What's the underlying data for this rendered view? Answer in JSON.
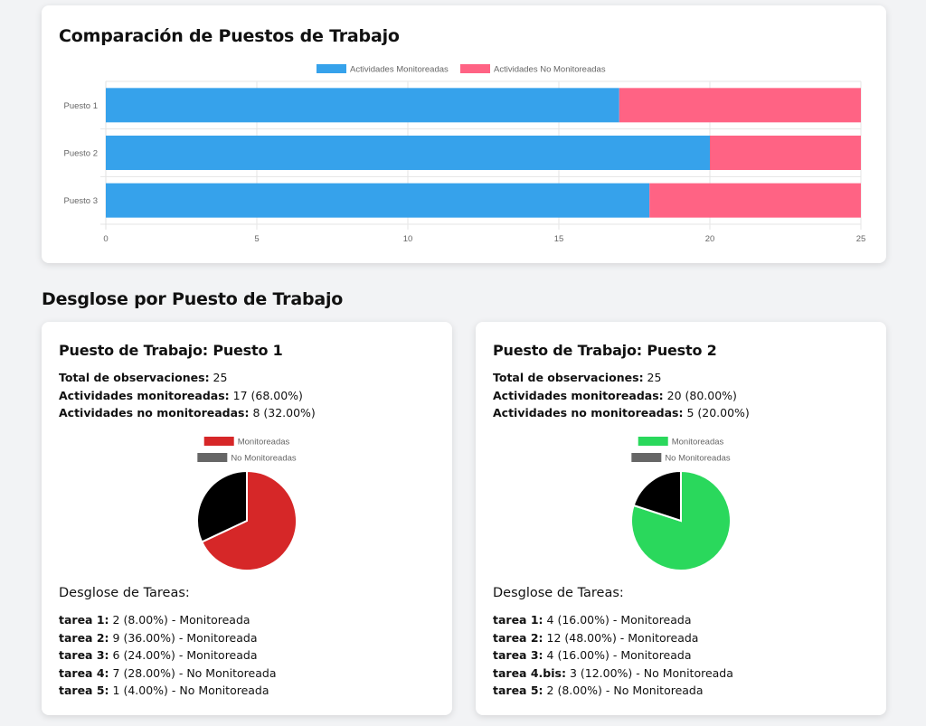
{
  "comparison": {
    "title": "Comparación de Puestos de Trabajo"
  },
  "chart_data": [
    {
      "type": "bar",
      "orientation": "horizontal",
      "stacked": true,
      "categories": [
        "Puesto 1",
        "Puesto 2",
        "Puesto 3"
      ],
      "series": [
        {
          "name": "Actividades Monitoreadas",
          "values": [
            17,
            20,
            18
          ],
          "color": "#36a2eb"
        },
        {
          "name": "Actividades No Monitoreadas",
          "values": [
            8,
            5,
            7
          ],
          "color": "#ff6384"
        }
      ],
      "xlim": [
        0,
        25
      ],
      "xticks": [
        0,
        5,
        10,
        15,
        20,
        25
      ],
      "legend": "top",
      "grid": true
    },
    {
      "type": "pie",
      "labels": [
        "Monitoreadas",
        "No Monitoreadas"
      ],
      "values": [
        17,
        8
      ],
      "colors": [
        "#d62728",
        "#000000"
      ],
      "legend_colors": [
        "#d62728",
        "#666666"
      ],
      "legend": "top"
    },
    {
      "type": "pie",
      "labels": [
        "Monitoreadas",
        "No Monitoreadas"
      ],
      "values": [
        20,
        5
      ],
      "colors": [
        "#2ad85c",
        "#000000"
      ],
      "legend_colors": [
        "#2ad85c",
        "#666666"
      ],
      "legend": "top"
    }
  ],
  "breakdown": {
    "title": "Desglose por Puesto de Trabajo",
    "workstations": [
      {
        "title": "Puesto de Trabajo: Puesto 1",
        "total_label": "Total de observaciones:",
        "total_value": " 25",
        "monitored_label": "Actividades monitoreadas:",
        "monitored_value": " 17 (68.00%)",
        "unmonitored_label": "Actividades no monitoreadas:",
        "unmonitored_value": " 8 (32.00%)",
        "tasks_title": "Desglose de Tareas:",
        "tasks": [
          {
            "name": "tarea 1:",
            "detail": " 2 (8.00%) - Monitoreada"
          },
          {
            "name": "tarea 2:",
            "detail": " 9 (36.00%) - Monitoreada"
          },
          {
            "name": "tarea 3:",
            "detail": " 6 (24.00%) - Monitoreada"
          },
          {
            "name": "tarea 4:",
            "detail": " 7 (28.00%) - No Monitoreada"
          },
          {
            "name": "tarea 5:",
            "detail": " 1 (4.00%) - No Monitoreada"
          }
        ]
      },
      {
        "title": "Puesto de Trabajo: Puesto 2",
        "total_label": "Total de observaciones:",
        "total_value": " 25",
        "monitored_label": "Actividades monitoreadas:",
        "monitored_value": " 20 (80.00%)",
        "unmonitored_label": "Actividades no monitoreadas:",
        "unmonitored_value": " 5 (20.00%)",
        "tasks_title": "Desglose de Tareas:",
        "tasks": [
          {
            "name": "tarea 1:",
            "detail": " 4 (16.00%) - Monitoreada"
          },
          {
            "name": "tarea 2:",
            "detail": " 12 (48.00%) - Monitoreada"
          },
          {
            "name": "tarea 3:",
            "detail": " 4 (16.00%) - Monitoreada"
          },
          {
            "name": "tarea 4.bis:",
            "detail": " 3 (12.00%) - No Monitoreada"
          },
          {
            "name": "tarea 5:",
            "detail": " 2 (8.00%) - No Monitoreada"
          }
        ]
      }
    ]
  }
}
